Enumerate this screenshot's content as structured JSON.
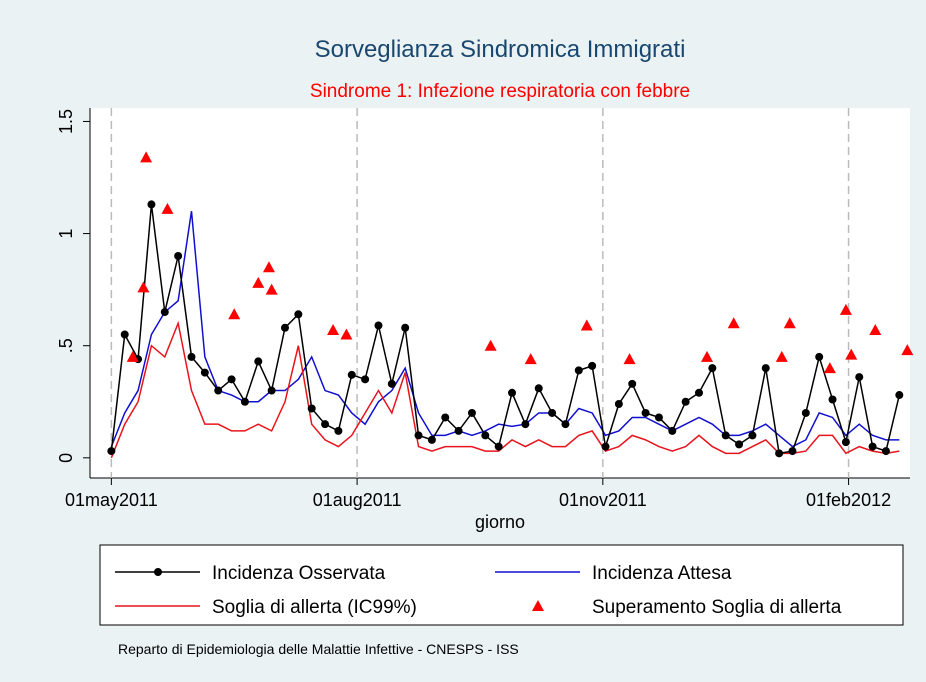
{
  "chart_data": {
    "type": "line",
    "title": "Sorveglianza Sindromica Immigrati",
    "subtitle": "Sindrome 1: Infezione respiratoria con febbre",
    "x_label": "giorno",
    "footnote": "Reparto di Epidemiologia delle Malattie Infettive - CNESPS - ISS",
    "x": [
      "2011-05-01",
      "2011-05-06",
      "2011-05-11",
      "2011-05-16",
      "2011-05-21",
      "2011-05-26",
      "2011-05-31",
      "2011-06-05",
      "2011-06-10",
      "2011-06-15",
      "2011-06-20",
      "2011-06-25",
      "2011-06-30",
      "2011-07-05",
      "2011-07-10",
      "2011-07-15",
      "2011-07-20",
      "2011-07-25",
      "2011-07-30",
      "2011-08-04",
      "2011-08-09",
      "2011-08-14",
      "2011-08-19",
      "2011-08-24",
      "2011-08-29",
      "2011-09-03",
      "2011-09-08",
      "2011-09-13",
      "2011-09-18",
      "2011-09-23",
      "2011-09-28",
      "2011-10-03",
      "2011-10-08",
      "2011-10-13",
      "2011-10-18",
      "2011-10-23",
      "2011-10-28",
      "2011-11-02",
      "2011-11-07",
      "2011-11-12",
      "2011-11-17",
      "2011-11-22",
      "2011-11-27",
      "2011-12-02",
      "2011-12-07",
      "2011-12-12",
      "2011-12-17",
      "2011-12-22",
      "2011-12-27",
      "2012-01-01",
      "2012-01-06",
      "2012-01-11",
      "2012-01-16",
      "2012-01-21",
      "2012-01-26",
      "2012-01-31",
      "2012-02-05",
      "2012-02-10",
      "2012-02-15",
      "2012-02-20"
    ],
    "series": [
      {
        "name": "Incidenza Osservata",
        "color": "#000000",
        "markers": true,
        "values": [
          0.03,
          0.55,
          0.44,
          1.13,
          0.65,
          0.9,
          0.45,
          0.38,
          0.3,
          0.35,
          0.25,
          0.43,
          0.3,
          0.58,
          0.64,
          0.22,
          0.15,
          0.12,
          0.37,
          0.35,
          0.59,
          0.33,
          0.58,
          0.1,
          0.08,
          0.18,
          0.12,
          0.2,
          0.1,
          0.05,
          0.29,
          0.15,
          0.31,
          0.2,
          0.15,
          0.39,
          0.41,
          0.05,
          0.24,
          0.33,
          0.2,
          0.18,
          0.12,
          0.25,
          0.29,
          0.4,
          0.1,
          0.06,
          0.1,
          0.4,
          0.02,
          0.03,
          0.2,
          0.45,
          0.26,
          0.07,
          0.36,
          0.05,
          0.03,
          0.28
        ]
      },
      {
        "name": "Incidenza Attesa",
        "color": "#1010d0",
        "markers": false,
        "values": [
          0.05,
          0.2,
          0.3,
          0.55,
          0.65,
          0.7,
          1.1,
          0.45,
          0.3,
          0.28,
          0.25,
          0.25,
          0.3,
          0.3,
          0.35,
          0.45,
          0.3,
          0.28,
          0.2,
          0.15,
          0.25,
          0.3,
          0.4,
          0.2,
          0.1,
          0.1,
          0.12,
          0.1,
          0.12,
          0.15,
          0.14,
          0.15,
          0.2,
          0.2,
          0.15,
          0.22,
          0.2,
          0.1,
          0.12,
          0.18,
          0.18,
          0.15,
          0.12,
          0.15,
          0.18,
          0.15,
          0.1,
          0.1,
          0.12,
          0.15,
          0.1,
          0.05,
          0.08,
          0.2,
          0.18,
          0.1,
          0.15,
          0.1,
          0.08,
          0.08
        ]
      },
      {
        "name": "Soglia di allerta (IC99%)",
        "color": "#e8141c",
        "markers": false,
        "values": [
          0.0,
          0.15,
          0.25,
          0.5,
          0.45,
          0.6,
          0.3,
          0.15,
          0.15,
          0.12,
          0.12,
          0.15,
          0.12,
          0.25,
          0.5,
          0.15,
          0.08,
          0.05,
          0.1,
          0.2,
          0.3,
          0.2,
          0.38,
          0.05,
          0.03,
          0.05,
          0.05,
          0.05,
          0.03,
          0.03,
          0.08,
          0.05,
          0.08,
          0.05,
          0.05,
          0.1,
          0.12,
          0.03,
          0.05,
          0.1,
          0.08,
          0.05,
          0.03,
          0.05,
          0.1,
          0.05,
          0.02,
          0.02,
          0.05,
          0.08,
          0.02,
          0.02,
          0.03,
          0.1,
          0.1,
          0.02,
          0.05,
          0.03,
          0.02,
          0.03
        ]
      }
    ],
    "exceedances": {
      "name": "Superamento Soglia di allerta",
      "color": "#ff0000",
      "x": [
        "2011-05-09",
        "2011-05-13",
        "2011-05-14",
        "2011-05-22",
        "2011-06-16",
        "2011-06-25",
        "2011-06-29",
        "2011-06-30",
        "2011-07-23",
        "2011-07-28",
        "2011-09-20",
        "2011-10-05",
        "2011-10-26",
        "2011-11-11",
        "2011-12-10",
        "2011-12-20",
        "2012-01-07",
        "2012-01-10",
        "2012-01-25",
        "2012-01-31",
        "2012-02-02",
        "2012-02-11",
        "2012-02-23"
      ],
      "values": [
        0.45,
        0.76,
        1.34,
        1.11,
        0.64,
        0.78,
        0.85,
        0.75,
        0.57,
        0.55,
        0.5,
        0.44,
        0.59,
        0.44,
        0.45,
        0.6,
        0.45,
        0.6,
        0.4,
        0.66,
        0.46,
        0.57,
        0.48
      ]
    },
    "xlim": [
      "2011-04-23",
      "2012-02-24"
    ],
    "xticks": [
      {
        "value": "2011-05-01",
        "label": "01may2011"
      },
      {
        "value": "2011-08-01",
        "label": "01aug2011"
      },
      {
        "value": "2011-11-01",
        "label": "01nov2011"
      },
      {
        "value": "2012-02-01",
        "label": "01feb2012"
      }
    ],
    "ylim": [
      -0.09,
      1.56
    ],
    "yticks": [
      0,
      {
        "value": 0.5,
        "label": ".5"
      },
      1,
      1.5
    ],
    "x_grid": true
  }
}
